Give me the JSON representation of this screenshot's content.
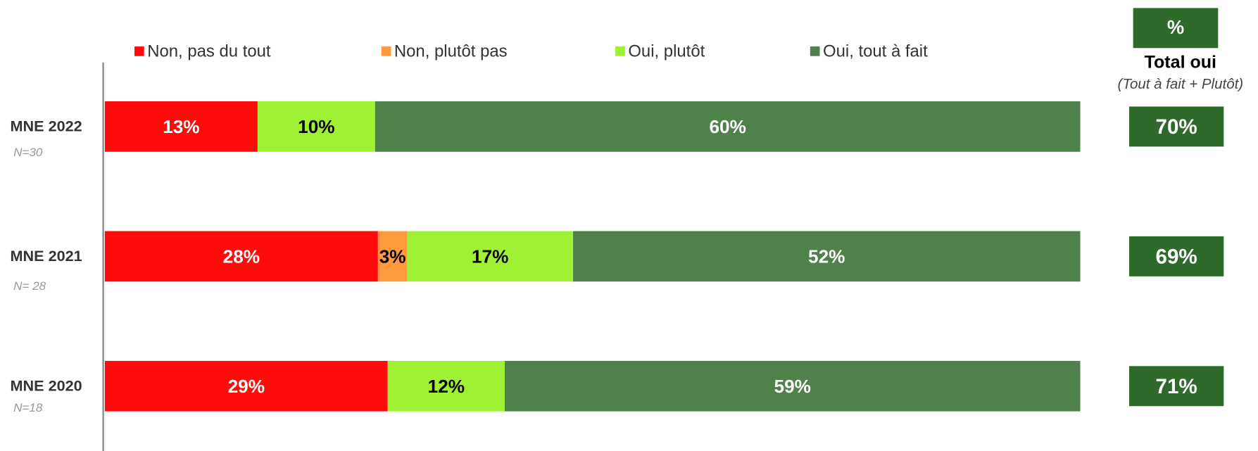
{
  "chart_data": {
    "type": "stacked-bar-100",
    "orientation": "horizontal",
    "categories": [
      "MNE 2022",
      "MNE 2021",
      "MNE 2020"
    ],
    "category_notes": [
      "N=30",
      "N= 28",
      "N=18"
    ],
    "series": [
      {
        "name": "Non, pas du tout",
        "color": "#ff0b0b",
        "label_color": "#ffffff",
        "values": [
          13,
          28,
          29
        ],
        "value_labels": [
          "13%",
          "28%",
          "29%"
        ]
      },
      {
        "name": "Non, plutôt pas",
        "color": "#ff9a3c",
        "label_color": "#000000",
        "values": [
          null,
          3,
          null
        ],
        "value_labels": [
          null,
          "3%",
          null
        ]
      },
      {
        "name": "Oui, plutôt",
        "color": "#9ef233",
        "label_color": "#000000",
        "values": [
          10,
          17,
          12
        ],
        "value_labels": [
          "10%",
          "17%",
          "12%"
        ]
      },
      {
        "name": "Oui, tout à fait",
        "color": "#4e824a",
        "label_color": "#ffffff",
        "values": [
          60,
          52,
          59
        ],
        "value_labels": [
          "60%",
          "52%",
          "59%"
        ]
      }
    ],
    "totals": {
      "header": "%",
      "title": "Total oui",
      "subtitle": "(Tout à fait + Plutôt)",
      "color": "#2e6b2b",
      "values": [
        70,
        69,
        71
      ],
      "value_labels": [
        "70%",
        "69%",
        "71%"
      ]
    },
    "legend": "top"
  }
}
